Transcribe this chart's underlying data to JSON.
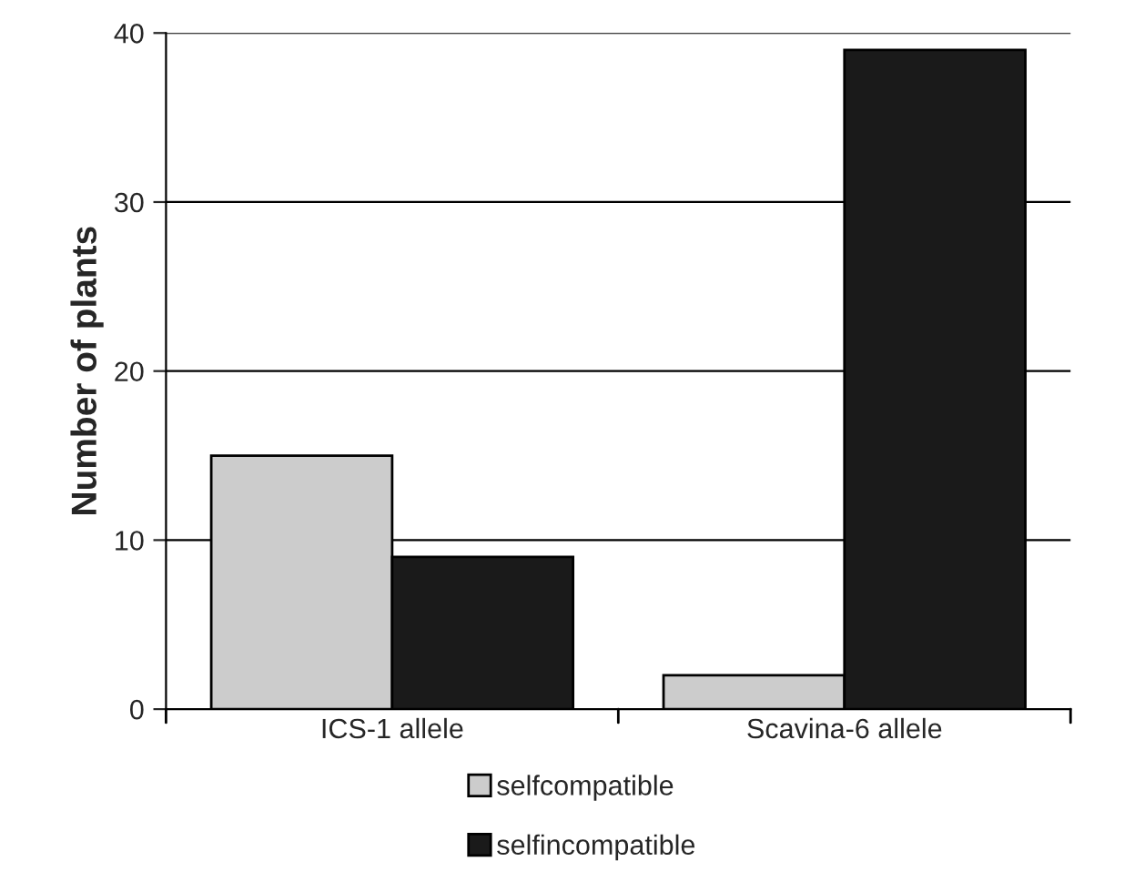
{
  "chart_data": {
    "type": "bar",
    "ylabel": "Number of plants",
    "categories": [
      "ICS-1 allele",
      "Scavina-6 allele"
    ],
    "series": [
      {
        "name": "selfcompatible",
        "color": "#cccccc",
        "values": [
          15,
          2
        ]
      },
      {
        "name": "selfincompatible",
        "color": "#1a1a1a",
        "values": [
          9,
          39
        ]
      }
    ],
    "ylim": [
      0,
      40
    ],
    "yticks": [
      0,
      10,
      20,
      30,
      40
    ],
    "grid": "y",
    "legend": "bottom"
  }
}
